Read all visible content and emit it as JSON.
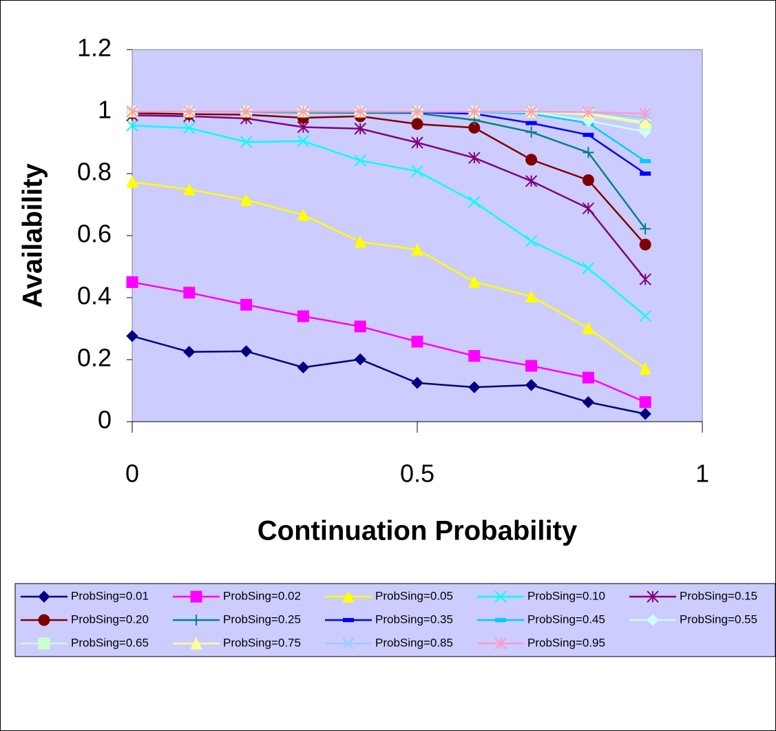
{
  "chart_data": {
    "type": "line",
    "x_label": "Continuation Probability",
    "y_label": "Availability",
    "x": [
      0,
      0.1,
      0.2,
      0.3,
      0.4,
      0.5,
      0.6,
      0.7,
      0.8,
      0.9
    ],
    "xlim": [
      0,
      1
    ],
    "xticks": [
      0,
      0.5,
      1
    ],
    "ylim": [
      0,
      1.2
    ],
    "yticks": [
      0,
      0.2,
      0.4,
      0.6,
      0.8,
      1,
      1.2
    ],
    "plot_background": "#CCCCFF",
    "legend": "bottom",
    "series": [
      {
        "name": "ProbSing=0.01",
        "color": "#000080",
        "marker": "diamond",
        "values": [
          0.276,
          0.225,
          0.227,
          0.175,
          0.201,
          0.125,
          0.111,
          0.118,
          0.063,
          0.025
        ]
      },
      {
        "name": "ProbSing=0.02",
        "color": "#FF00FF",
        "marker": "square",
        "values": [
          0.45,
          0.416,
          0.377,
          0.34,
          0.307,
          0.258,
          0.212,
          0.18,
          0.142,
          0.063
        ]
      },
      {
        "name": "ProbSing=0.05",
        "color": "#FFFF00",
        "marker": "triangle",
        "values": [
          0.773,
          0.749,
          0.715,
          0.667,
          0.58,
          0.555,
          0.451,
          0.404,
          0.301,
          0.171
        ]
      },
      {
        "name": "ProbSing=0.10",
        "color": "#00FFFF",
        "marker": "x",
        "values": [
          0.955,
          0.947,
          0.902,
          0.905,
          0.842,
          0.808,
          0.709,
          0.582,
          0.495,
          0.341
        ]
      },
      {
        "name": "ProbSing=0.15",
        "color": "#800080",
        "marker": "star",
        "values": [
          0.988,
          0.985,
          0.978,
          0.95,
          0.945,
          0.9,
          0.851,
          0.776,
          0.688,
          0.459
        ]
      },
      {
        "name": "ProbSing=0.20",
        "color": "#800000",
        "marker": "circle",
        "values": [
          0.995,
          0.992,
          0.99,
          0.98,
          0.985,
          0.96,
          0.948,
          0.845,
          0.779,
          0.571
        ]
      },
      {
        "name": "ProbSing=0.25",
        "color": "#008080",
        "marker": "plus",
        "values": [
          1,
          1,
          0.999,
          0.997,
          0.996,
          0.995,
          0.973,
          0.934,
          0.868,
          0.622
        ]
      },
      {
        "name": "ProbSing=0.35",
        "color": "#0000FF",
        "marker": "dash",
        "values": [
          1,
          1,
          1,
          1,
          1,
          0.998,
          0.993,
          0.963,
          0.925,
          0.8
        ]
      },
      {
        "name": "ProbSing=0.45",
        "color": "#00CCFF",
        "marker": "dash",
        "values": [
          1,
          1,
          1,
          1,
          1,
          1,
          0.999,
          0.993,
          0.963,
          0.84
        ]
      },
      {
        "name": "ProbSing=0.55",
        "color": "#CCFFFF",
        "marker": "diamond",
        "values": [
          1,
          1,
          1,
          1,
          1,
          1,
          1,
          0.998,
          0.97,
          0.935
        ]
      },
      {
        "name": "ProbSing=0.65",
        "color": "#CCFFCC",
        "marker": "square",
        "values": [
          1,
          1,
          1,
          1,
          1,
          1,
          1,
          0.999,
          0.99,
          0.96
        ]
      },
      {
        "name": "ProbSing=0.75",
        "color": "#FFFF99",
        "marker": "triangle",
        "values": [
          1,
          1,
          1,
          1,
          1,
          1,
          1,
          1,
          0.995,
          0.965
        ]
      },
      {
        "name": "ProbSing=0.85",
        "color": "#99CCFF",
        "marker": "x",
        "values": [
          1,
          1,
          1,
          1,
          1,
          1,
          1,
          1,
          0.998,
          0.98
        ]
      },
      {
        "name": "ProbSing=0.95",
        "color": "#FF99CC",
        "marker": "star",
        "values": [
          1,
          1,
          1,
          1,
          1,
          1,
          1,
          1,
          0.999,
          0.993
        ]
      }
    ]
  }
}
